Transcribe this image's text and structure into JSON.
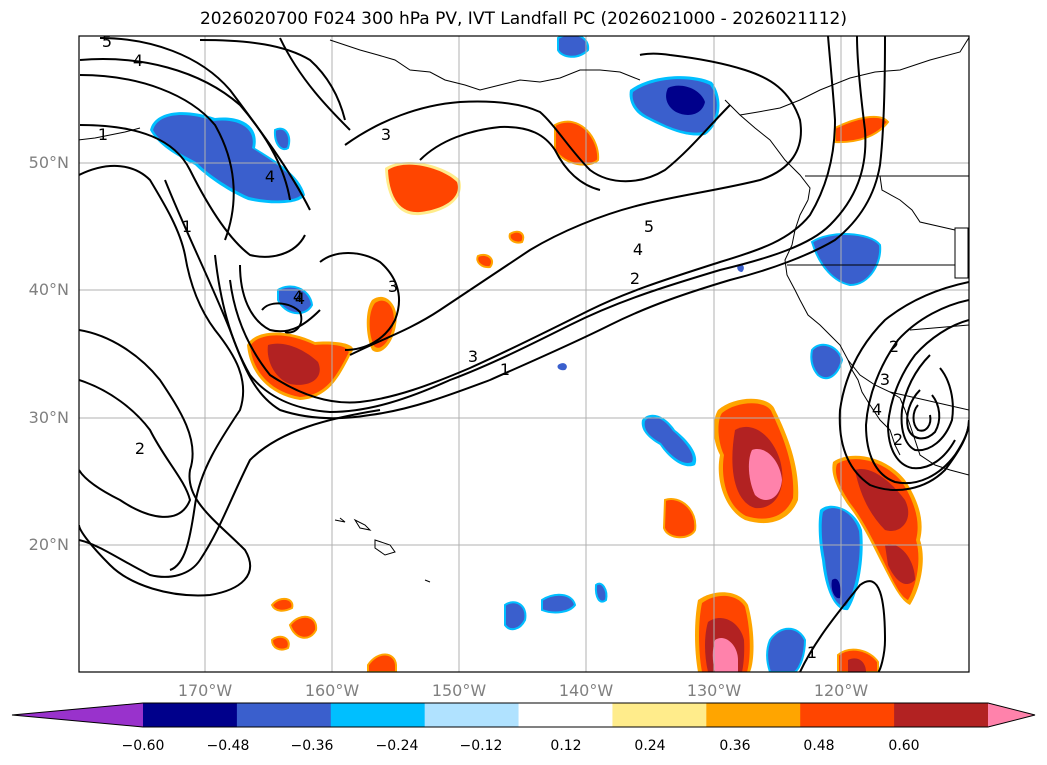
{
  "title": "2026020700 F024 300 hPa PV, IVT Landfall PC (2026021000 - 2026021112)",
  "axes": {
    "lat_labels": [
      "50°N",
      "40°N",
      "30°N",
      "20°N"
    ],
    "lon_labels": [
      "170°W",
      "160°W",
      "150°W",
      "140°W",
      "130°W",
      "120°W"
    ]
  },
  "contour_labels": [
    "5",
    "4",
    "1",
    "3",
    "4",
    "1",
    "4",
    "3",
    "4",
    "2",
    "5",
    "4",
    "2",
    "3",
    "1",
    "2",
    "3",
    "4",
    "2",
    "1"
  ],
  "colorbar": {
    "ticks": [
      "−0.60",
      "−0.48",
      "−0.36",
      "−0.24",
      "−0.12",
      "0.12",
      "0.24",
      "0.36",
      "0.48",
      "0.60"
    ],
    "colors": [
      "#9932cc",
      "#00008b",
      "#3a5fcd",
      "#00bfff",
      "#b0e2ff",
      "#ffffff",
      "#ffec8b",
      "#ffa500",
      "#ff4500",
      "#b22222",
      "#ff82ab"
    ]
  }
}
